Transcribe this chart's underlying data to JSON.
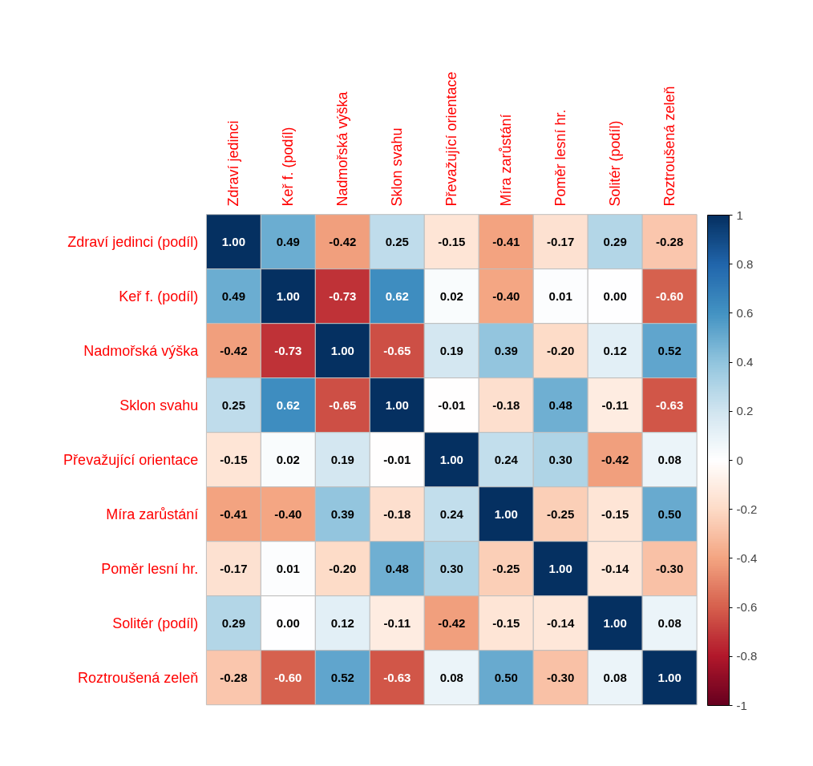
{
  "chart_data": {
    "type": "heatmap",
    "categories": [
      "Zdraví jedinci",
      "Keř f. (podíl)",
      "Nadmořská výška",
      "Sklon svahu",
      "Převažující orientace",
      "Míra zarůstání",
      "Poměr lesní hr.",
      "Solitér (podíl)",
      "Roztroušená zeleň"
    ],
    "y_categories": [
      "Zdraví jedinci (podíl)",
      "Keř f. (podíl)",
      "Nadmořská výška",
      "Sklon svahu",
      "Převažující orientace",
      "Míra zarůstání",
      "Poměr lesní hr.",
      "Solitér (podíl)",
      "Roztroušená zeleň"
    ],
    "cells": [
      [
        1.0,
        0.49,
        -0.42,
        0.25,
        -0.15,
        -0.41,
        -0.17,
        0.29,
        -0.28
      ],
      [
        0.49,
        1.0,
        -0.73,
        0.62,
        0.02,
        -0.4,
        0.01,
        0.0,
        -0.6
      ],
      [
        -0.42,
        -0.73,
        1.0,
        -0.65,
        0.19,
        0.39,
        -0.2,
        0.12,
        0.52
      ],
      [
        0.25,
        0.62,
        -0.65,
        1.0,
        -0.01,
        -0.18,
        0.48,
        -0.11,
        -0.63
      ],
      [
        -0.15,
        0.02,
        0.19,
        -0.01,
        1.0,
        0.24,
        0.3,
        -0.42,
        0.08
      ],
      [
        -0.41,
        -0.4,
        0.39,
        -0.18,
        0.24,
        1.0,
        -0.25,
        -0.15,
        0.5
      ],
      [
        -0.17,
        0.01,
        -0.2,
        0.48,
        0.3,
        -0.25,
        1.0,
        -0.14,
        -0.3
      ],
      [
        0.29,
        0.0,
        0.12,
        -0.11,
        -0.42,
        -0.15,
        -0.14,
        1.0,
        0.08
      ],
      [
        -0.28,
        -0.6,
        0.52,
        -0.63,
        0.08,
        0.5,
        -0.3,
        0.08,
        1.0
      ]
    ],
    "cell_labels": [
      [
        "1.00",
        "0.49",
        "-0.42",
        "0.25",
        "-0.15",
        "-0.41",
        "-0.17",
        "0.29",
        "-0.28"
      ],
      [
        "0.49",
        "1.00",
        "-0.73",
        "0.62",
        "0.02",
        "-0.40",
        "0.01",
        "0.00",
        "-0.60"
      ],
      [
        "-0.42",
        "-0.73",
        "1.00",
        "-0.65",
        "0.19",
        "0.39",
        "-0.20",
        "0.12",
        "0.52"
      ],
      [
        "0.25",
        "0.62",
        "-0.65",
        "1.00",
        "-0.01",
        "-0.18",
        "0.48",
        "-0.11",
        "-0.63"
      ],
      [
        "-0.15",
        "0.02",
        "0.19",
        "-0.01",
        "1.00",
        "0.24",
        "0.30",
        "-0.42",
        "0.08"
      ],
      [
        "-0.41",
        "-0.40",
        "0.39",
        "-0.18",
        "0.24",
        "1.00",
        "-0.25",
        "-0.15",
        "0.50"
      ],
      [
        "-0.17",
        "0.01",
        "-0.20",
        "0.48",
        "0.30",
        "-0.25",
        "1.00",
        "-0.14",
        "-0.30"
      ],
      [
        "0.29",
        "0.00",
        "0.12",
        "-0.11",
        "-0.42",
        "-0.15",
        "-0.14",
        "1.00",
        "0.08"
      ],
      [
        "-0.28",
        "-0.60",
        "0.52",
        "-0.63",
        "0.08",
        "0.50",
        "-0.30",
        "0.08",
        "1.00"
      ]
    ],
    "clim": [
      -1,
      1
    ],
    "cticks": [
      -1,
      -0.8,
      -0.6,
      -0.4,
      -0.2,
      0,
      0.2,
      0.4,
      0.6,
      0.8,
      1
    ]
  }
}
